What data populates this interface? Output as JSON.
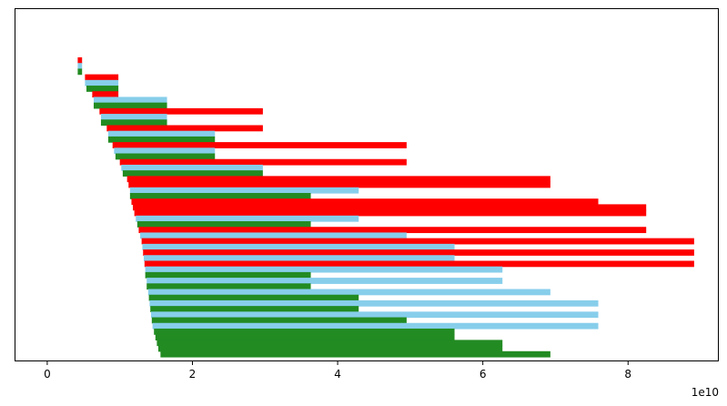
{
  "chart_data": {
    "type": "bar",
    "orientation": "horizontal",
    "stacked": false,
    "title": "",
    "xlabel": "",
    "ylabel": "",
    "x_offset_label": "1e10",
    "x_scale_factor": 10000000000,
    "xlim": [
      -0.45,
      9.25
    ],
    "x_ticks": [
      0,
      2,
      4,
      6,
      8
    ],
    "x_tick_labels": [
      "0",
      "2",
      "4",
      "6",
      "8"
    ],
    "y_ticks_visible": false,
    "grid": false,
    "legend": "none",
    "colors": {
      "red": "#ff0000",
      "skyblue": "#87ceeb",
      "green": "#228b22"
    },
    "bars": [
      {
        "color": "red",
        "start": 0.42,
        "end": 0.48
      },
      {
        "color": "skyblue",
        "start": 0.42,
        "end": 0.48
      },
      {
        "color": "green",
        "start": 0.42,
        "end": 0.48
      },
      {
        "color": "red",
        "start": 0.52,
        "end": 0.98
      },
      {
        "color": "skyblue",
        "start": 0.52,
        "end": 0.98
      },
      {
        "color": "green",
        "start": 0.54,
        "end": 0.98
      },
      {
        "color": "red",
        "start": 0.62,
        "end": 0.98
      },
      {
        "color": "skyblue",
        "start": 0.64,
        "end": 1.65
      },
      {
        "color": "green",
        "start": 0.64,
        "end": 1.65
      },
      {
        "color": "red",
        "start": 0.72,
        "end": 2.97
      },
      {
        "color": "skyblue",
        "start": 0.74,
        "end": 1.65
      },
      {
        "color": "green",
        "start": 0.74,
        "end": 1.65
      },
      {
        "color": "red",
        "start": 0.82,
        "end": 2.97
      },
      {
        "color": "skyblue",
        "start": 0.84,
        "end": 2.31
      },
      {
        "color": "green",
        "start": 0.84,
        "end": 2.31
      },
      {
        "color": "red",
        "start": 0.9,
        "end": 4.95
      },
      {
        "color": "skyblue",
        "start": 0.92,
        "end": 2.31
      },
      {
        "color": "green",
        "start": 0.94,
        "end": 2.31
      },
      {
        "color": "red",
        "start": 1.0,
        "end": 4.95
      },
      {
        "color": "skyblue",
        "start": 1.02,
        "end": 2.97
      },
      {
        "color": "green",
        "start": 1.04,
        "end": 2.97
      },
      {
        "color": "red",
        "start": 1.1,
        "end": 6.93
      },
      {
        "color": "red",
        "start": 1.12,
        "end": 6.93
      },
      {
        "color": "skyblue",
        "start": 1.14,
        "end": 4.29
      },
      {
        "color": "green",
        "start": 1.14,
        "end": 3.63
      },
      {
        "color": "red",
        "start": 1.16,
        "end": 7.59
      },
      {
        "color": "red",
        "start": 1.18,
        "end": 8.25
      },
      {
        "color": "red",
        "start": 1.2,
        "end": 8.25
      },
      {
        "color": "skyblue",
        "start": 1.22,
        "end": 4.29
      },
      {
        "color": "green",
        "start": 1.24,
        "end": 3.63
      },
      {
        "color": "red",
        "start": 1.26,
        "end": 8.25
      },
      {
        "color": "skyblue",
        "start": 1.28,
        "end": 4.95
      },
      {
        "color": "red",
        "start": 1.3,
        "end": 8.91
      },
      {
        "color": "skyblue",
        "start": 1.31,
        "end": 5.61
      },
      {
        "color": "red",
        "start": 1.32,
        "end": 8.91
      },
      {
        "color": "skyblue",
        "start": 1.33,
        "end": 5.61
      },
      {
        "color": "red",
        "start": 1.34,
        "end": 8.91
      },
      {
        "color": "skyblue",
        "start": 1.35,
        "end": 6.27
      },
      {
        "color": "green",
        "start": 1.35,
        "end": 3.63
      },
      {
        "color": "skyblue",
        "start": 1.37,
        "end": 6.27
      },
      {
        "color": "green",
        "start": 1.37,
        "end": 3.63
      },
      {
        "color": "skyblue",
        "start": 1.39,
        "end": 6.93
      },
      {
        "color": "green",
        "start": 1.4,
        "end": 4.29
      },
      {
        "color": "skyblue",
        "start": 1.41,
        "end": 7.59
      },
      {
        "color": "green",
        "start": 1.42,
        "end": 4.29
      },
      {
        "color": "skyblue",
        "start": 1.43,
        "end": 7.59
      },
      {
        "color": "green",
        "start": 1.44,
        "end": 4.95
      },
      {
        "color": "skyblue",
        "start": 1.45,
        "end": 7.59
      },
      {
        "color": "green",
        "start": 1.47,
        "end": 5.61
      },
      {
        "color": "green",
        "start": 1.49,
        "end": 5.61
      },
      {
        "color": "green",
        "start": 1.51,
        "end": 6.27
      },
      {
        "color": "green",
        "start": 1.53,
        "end": 6.27
      },
      {
        "color": "green",
        "start": 1.56,
        "end": 6.93
      }
    ]
  }
}
